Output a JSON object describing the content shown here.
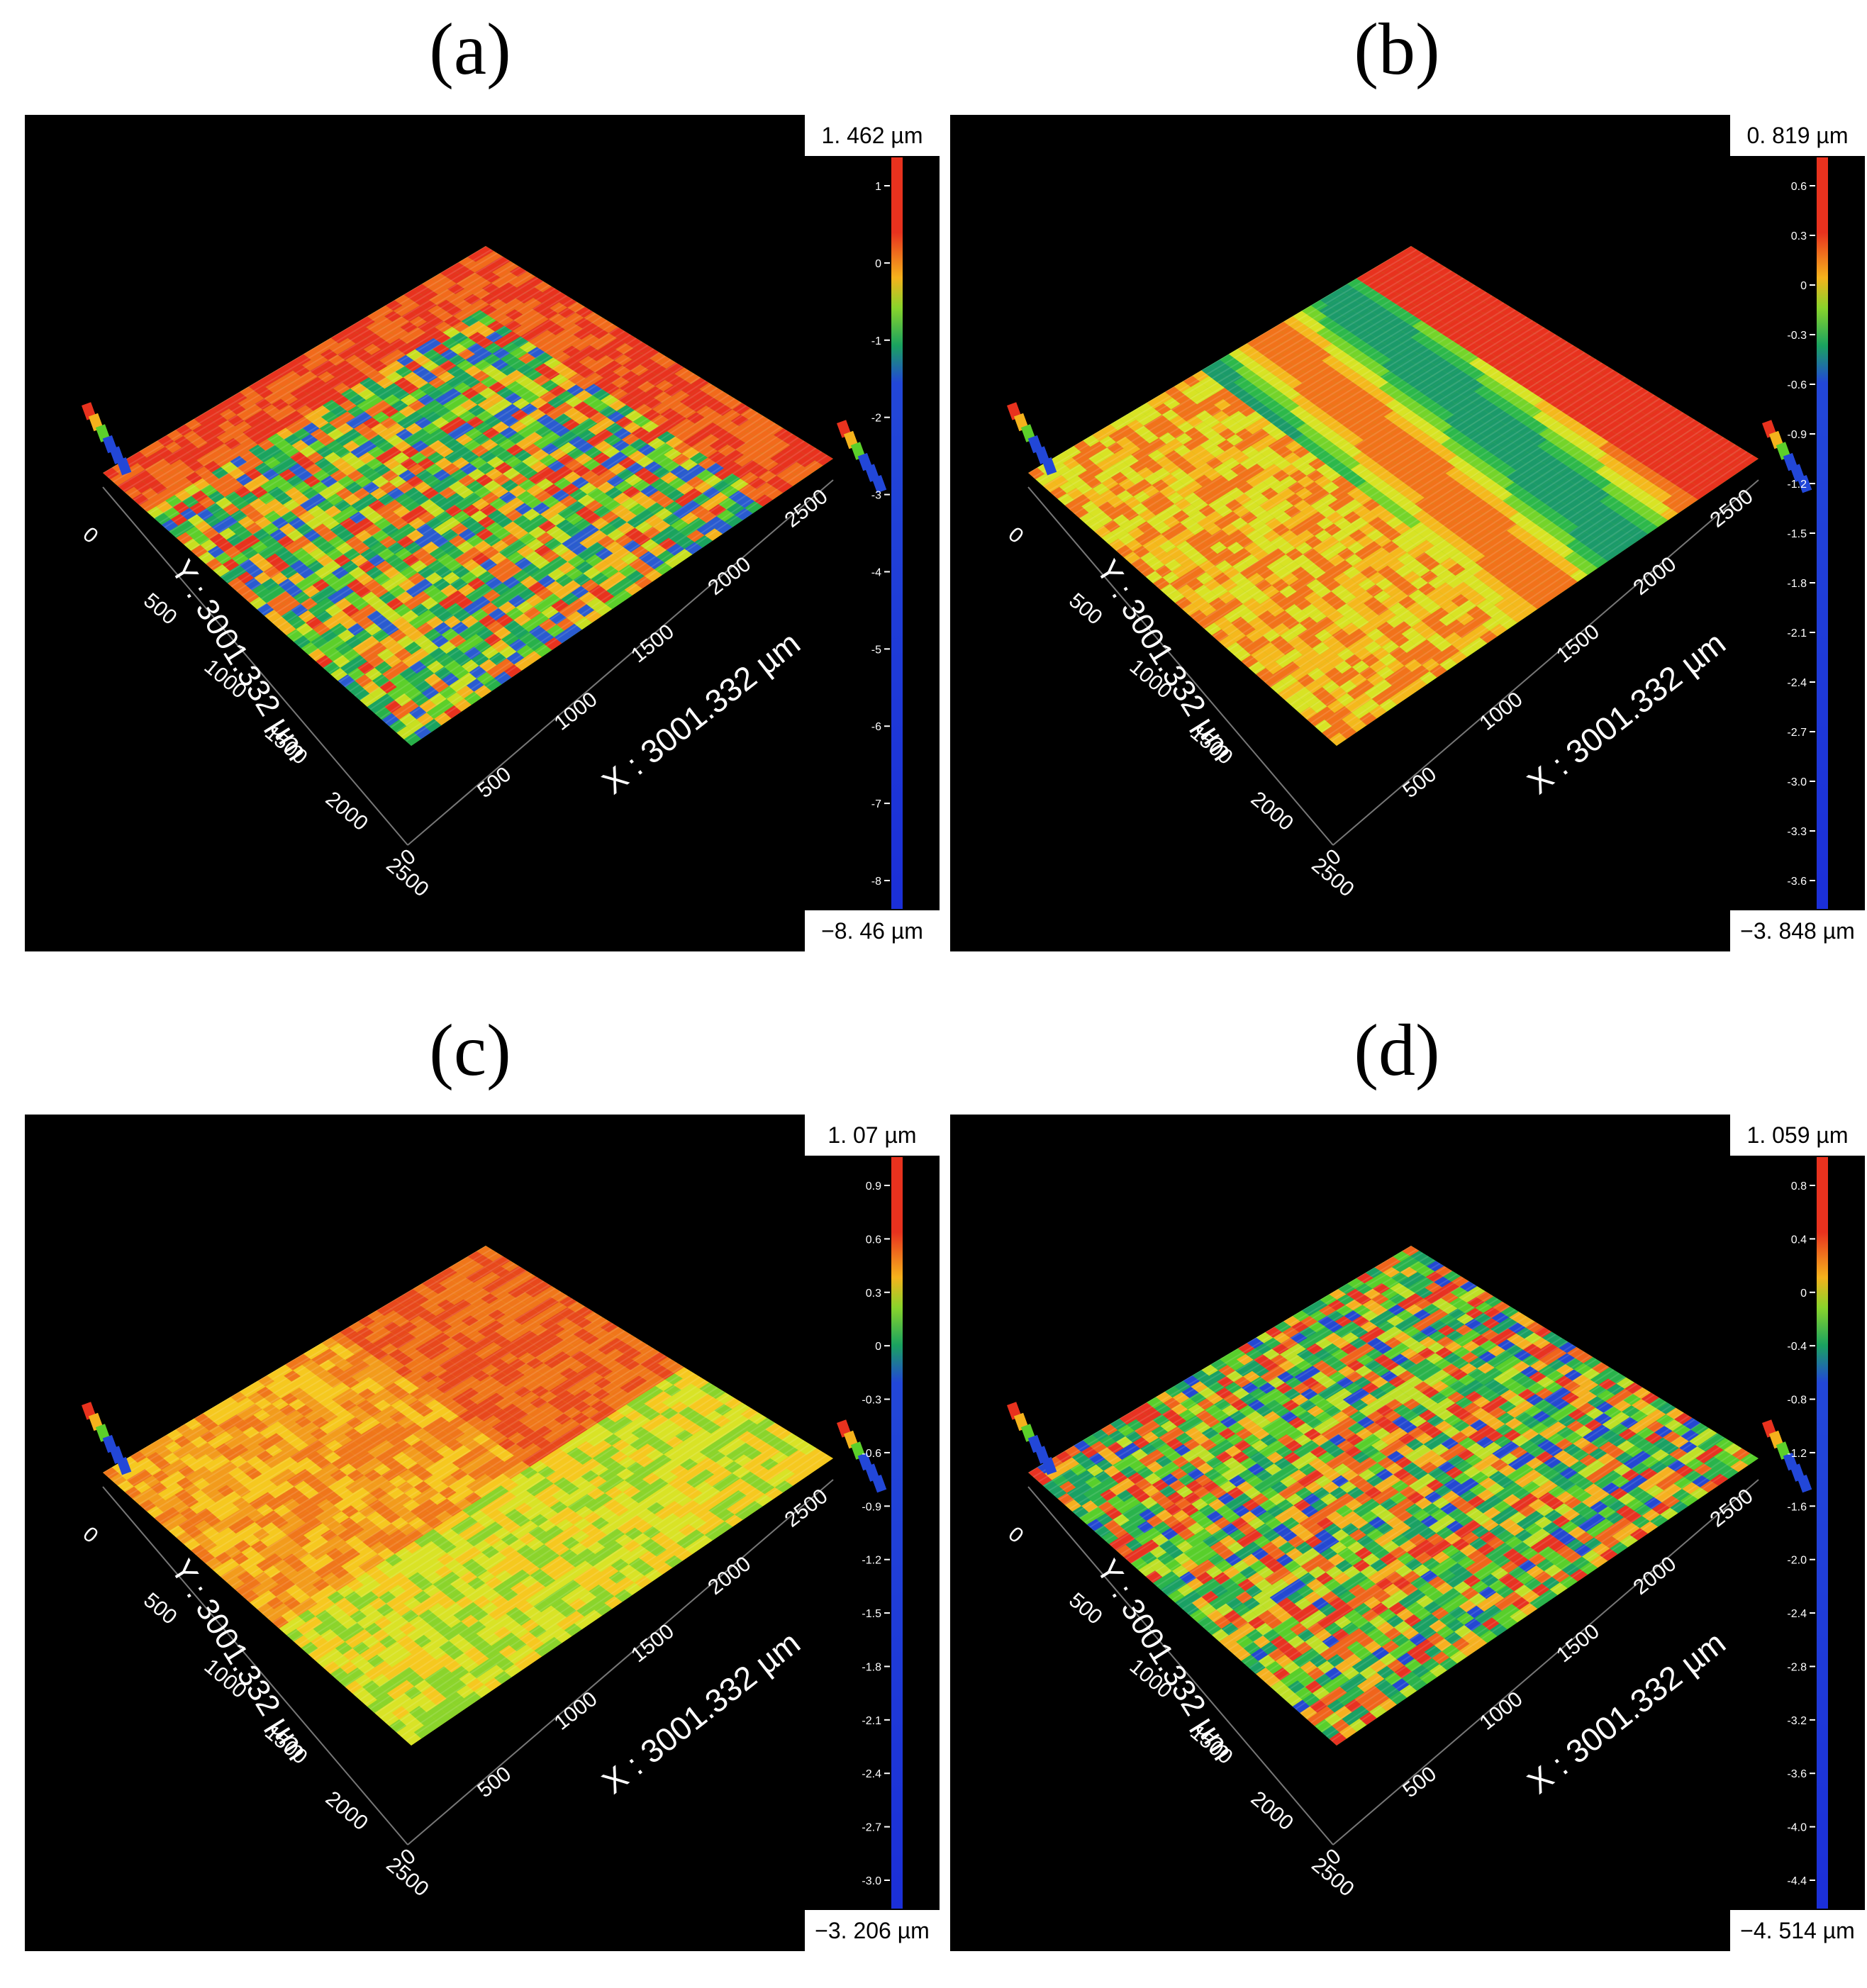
{
  "panels": [
    {
      "label": "(a)",
      "max": "1. 462  µm",
      "min": "−8. 46  µm",
      "x_axis": "X : 3001.332 µm",
      "y_axis": "Y : 3001.332 µm",
      "x_ticks": [
        "0",
        "500",
        "1000",
        "1500",
        "2000",
        "2500"
      ],
      "y_ticks": [
        "0",
        "500",
        "1000",
        "1500",
        "2000",
        "2500"
      ],
      "scale_ticks": [
        "1",
        "0",
        "-1",
        "-2",
        "-3",
        "-4",
        "-5",
        "-6",
        "-7",
        "-8"
      ],
      "scale_ticks_max": 1.462,
      "scale_ticks_min": -8.46,
      "z_range": [
        -8.46,
        1.462
      ],
      "dominant": "mixed"
    },
    {
      "label": "(b)",
      "max": "0. 819  µm",
      "min": "−3. 848  µm",
      "x_axis": "X : 3001.332 µm",
      "y_axis": "Y : 3001.332 µm",
      "x_ticks": [
        "0",
        "500",
        "1000",
        "1500",
        "2000",
        "2500"
      ],
      "y_ticks": [
        "0",
        "500",
        "1000",
        "1500",
        "2000",
        "2500"
      ],
      "scale_ticks": [
        "0.6",
        "0.3",
        "0",
        "-0.3",
        "-0.6",
        "-0.9",
        "-1.2",
        "-1.5",
        "-1.8",
        "-2.1",
        "-2.4",
        "-2.7",
        "-3.0",
        "-3.3",
        "-3.6"
      ],
      "z_range": [
        -3.848,
        0.819
      ],
      "dominant": "banded"
    },
    {
      "label": "(c)",
      "max": "1. 07  µm",
      "min": "−3. 206  µm",
      "x_axis": "X : 3001.332 µm",
      "y_axis": "Y : 3001.332 µm",
      "x_ticks": [
        "0",
        "500",
        "1000",
        "1500",
        "2000",
        "2500"
      ],
      "y_ticks": [
        "0",
        "500",
        "1000",
        "1500",
        "2000",
        "2500"
      ],
      "scale_ticks": [
        "0.9",
        "0.6",
        "0.3",
        "0",
        "-0.3",
        "-0.6",
        "-0.9",
        "-1.2",
        "-1.5",
        "-1.8",
        "-2.1",
        "-2.4",
        "-2.7",
        "-3.0"
      ],
      "z_range": [
        -3.206,
        1.07
      ],
      "dominant": "orange"
    },
    {
      "label": "(d)",
      "max": "1. 059  µm",
      "min": "−4. 514  µm",
      "x_axis": "X : 3001.332 µm",
      "y_axis": "Y : 3001.332 µm",
      "x_ticks": [
        "0",
        "500",
        "1000",
        "1500",
        "2000",
        "2500"
      ],
      "y_ticks": [
        "0",
        "500",
        "1000",
        "1500",
        "2000",
        "2500"
      ],
      "scale_ticks": [
        "0.8",
        "0.4",
        "0",
        "-0.4",
        "-0.8",
        "-1.2",
        "-1.6",
        "-2.0",
        "-2.4",
        "-2.8",
        "-3.2",
        "-3.6",
        "-4.0",
        "-4.4"
      ],
      "z_range": [
        -4.514,
        1.059
      ],
      "dominant": "mixed-red"
    }
  ]
}
